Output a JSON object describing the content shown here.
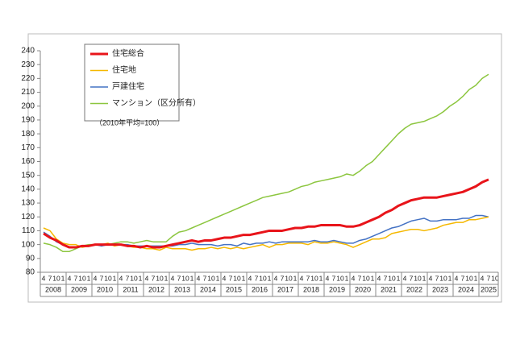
{
  "chart_data": {
    "type": "line",
    "annotation": "（2010年平均=100）",
    "categories": [
      "4",
      "7",
      "10",
      "1",
      "4",
      "7",
      "10",
      "1",
      "4",
      "7",
      "10",
      "1",
      "4",
      "7",
      "10",
      "1",
      "4",
      "7",
      "10",
      "1",
      "4",
      "7",
      "10",
      "1",
      "4",
      "7",
      "10",
      "1",
      "4",
      "7",
      "10",
      "1",
      "4",
      "7",
      "10",
      "1",
      "4",
      "7",
      "10",
      "1",
      "4",
      "7",
      "10",
      "1",
      "4",
      "7",
      "10",
      "1",
      "4",
      "7",
      "10",
      "1",
      "4",
      "7",
      "10",
      "1",
      "4",
      "7",
      "10",
      "1",
      "4",
      "7",
      "10",
      "1",
      "4",
      "7",
      "10",
      "1",
      "4",
      "7",
      "10"
    ],
    "years": [
      "2008",
      "2009",
      "2010",
      "2011",
      "2012",
      "2013",
      "2014",
      "2015",
      "2016",
      "2017",
      "2018",
      "2019",
      "2020",
      "2021",
      "2022",
      "2023",
      "2024",
      "2025"
    ],
    "ylim": [
      80,
      240
    ],
    "yticks": [
      80,
      90,
      100,
      110,
      120,
      130,
      140,
      150,
      160,
      170,
      180,
      190,
      200,
      210,
      220,
      230,
      240
    ],
    "series": [
      {
        "name": "住宅総合",
        "color": "#e8141a",
        "width": 3,
        "values": [
          108,
          105,
          103,
          100,
          98,
          98,
          99,
          99,
          100,
          100,
          100,
          100,
          100,
          99,
          99,
          98,
          99,
          98,
          98,
          99,
          100,
          101,
          102,
          103,
          102,
          103,
          103,
          104,
          105,
          105,
          106,
          107,
          107,
          108,
          109,
          110,
          110,
          110,
          111,
          112,
          112,
          113,
          113,
          114,
          114,
          114,
          114,
          113,
          113,
          114,
          116,
          118,
          120,
          123,
          125,
          128,
          130,
          132,
          133,
          134,
          134,
          134,
          135,
          136,
          137,
          138,
          140,
          142,
          145,
          147,
          null
        ]
      },
      {
        "name": "住宅地",
        "color": "#f5b800",
        "width": 1.5,
        "values": [
          112,
          110,
          104,
          101,
          100,
          100,
          98,
          99,
          100,
          100,
          101,
          99,
          100,
          99,
          98,
          98,
          97,
          97,
          96,
          98,
          97,
          97,
          97,
          96,
          97,
          97,
          98,
          97,
          98,
          97,
          98,
          97,
          98,
          99,
          100,
          98,
          100,
          100,
          101,
          101,
          101,
          100,
          102,
          101,
          101,
          102,
          101,
          100,
          98,
          100,
          102,
          104,
          104,
          105,
          108,
          109,
          110,
          111,
          111,
          110,
          111,
          112,
          114,
          115,
          116,
          116,
          118,
          118,
          119,
          120,
          null
        ]
      },
      {
        "name": "戸建住宅",
        "color": "#4472c4",
        "width": 1.5,
        "values": [
          109,
          106,
          102,
          100,
          98,
          98,
          99,
          99,
          100,
          99,
          100,
          100,
          100,
          100,
          99,
          99,
          99,
          99,
          99,
          99,
          99,
          100,
          100,
          101,
          100,
          100,
          100,
          99,
          100,
          100,
          99,
          101,
          100,
          101,
          101,
          102,
          101,
          102,
          102,
          102,
          102,
          102,
          103,
          102,
          102,
          103,
          102,
          101,
          101,
          103,
          104,
          106,
          108,
          110,
          112,
          113,
          115,
          117,
          118,
          119,
          117,
          117,
          118,
          118,
          118,
          119,
          119,
          121,
          121,
          120,
          null
        ]
      },
      {
        "name": "マンション（区分所有）",
        "color": "#8cc63f",
        "width": 1.5,
        "values": [
          101,
          100,
          98,
          95,
          95,
          97,
          99,
          100,
          100,
          100,
          100,
          101,
          102,
          102,
          101,
          102,
          103,
          102,
          102,
          102,
          106,
          109,
          110,
          112,
          114,
          116,
          118,
          120,
          122,
          124,
          126,
          128,
          130,
          132,
          134,
          135,
          136,
          137,
          138,
          140,
          142,
          143,
          145,
          146,
          147,
          148,
          149,
          151,
          150,
          153,
          157,
          160,
          165,
          170,
          175,
          180,
          184,
          187,
          188,
          189,
          191,
          193,
          196,
          200,
          203,
          207,
          212,
          215,
          220,
          223,
          null
        ]
      }
    ]
  }
}
